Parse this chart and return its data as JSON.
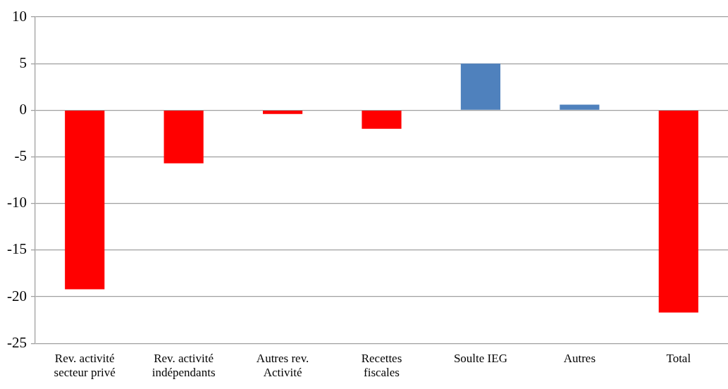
{
  "chart_data": {
    "type": "bar",
    "categories": [
      "Rev. activité secteur privé",
      "Rev. activité indépendants",
      "Autres rev. Activité",
      "Recettes fiscales",
      "Soulte IEG",
      "Autres",
      "Total"
    ],
    "values": [
      -19.2,
      -5.7,
      -0.4,
      -2.0,
      5.0,
      0.6,
      -21.7
    ],
    "colors": [
      "#ff0000",
      "#ff0000",
      "#ff0000",
      "#ff0000",
      "#4f81bd",
      "#4f81bd",
      "#ff0000"
    ],
    "ylim": [
      -25,
      10
    ],
    "yticks": [
      -25,
      -20,
      -15,
      -10,
      -5,
      0,
      5,
      10
    ],
    "grid": "y"
  }
}
